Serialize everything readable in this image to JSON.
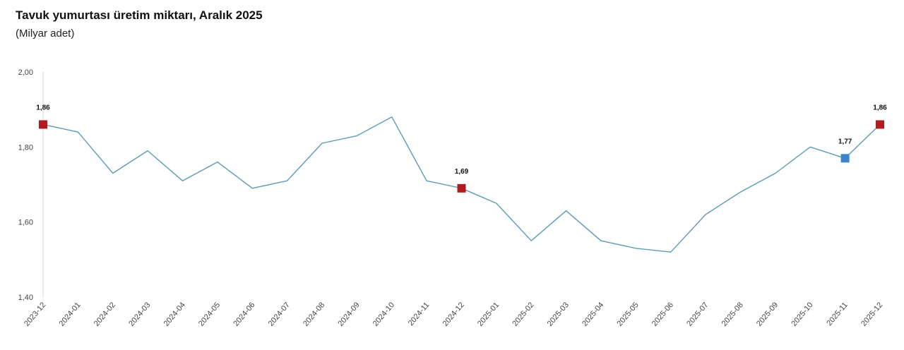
{
  "title": "Tavuk yumurtası üretim miktarı, Aralık 2025",
  "subtitle": "(Milyar adet)",
  "chart_data": {
    "type": "line",
    "title": "Tavuk yumurtası üretim miktarı, Aralık 2025",
    "subtitle": "(Milyar adet)",
    "xlabel": "",
    "ylabel": "",
    "ylim": [
      1.4,
      2.0
    ],
    "yticks": [
      1.4,
      1.6,
      1.8,
      2.0
    ],
    "ytick_labels": [
      "1,40",
      "1,60",
      "1,80",
      "2,00"
    ],
    "grid": false,
    "categories": [
      "2023-12",
      "2024-01",
      "2024-02",
      "2024-03",
      "2024-04",
      "2024-05",
      "2024-06",
      "2024-07",
      "2024-08",
      "2024-09",
      "2024-10",
      "2024-11",
      "2024-12",
      "2025-01",
      "2025-02",
      "2025-03",
      "2025-04",
      "2025-05",
      "2025-06",
      "2025-07",
      "2025-08",
      "2025-09",
      "2025-10",
      "2025-11",
      "2025-12"
    ],
    "series": [
      {
        "values": [
          1.86,
          1.84,
          1.73,
          1.79,
          1.71,
          1.76,
          1.69,
          1.71,
          1.81,
          1.83,
          1.88,
          1.71,
          1.69,
          1.65,
          1.55,
          1.63,
          1.55,
          1.53,
          1.52,
          1.62,
          1.68,
          1.73,
          1.8,
          1.77,
          1.86
        ],
        "color": "#5b9bb8"
      }
    ],
    "highlights": [
      {
        "category": "2023-12",
        "value": 1.86,
        "label": "1,86",
        "color": "#b01c22"
      },
      {
        "category": "2024-12",
        "value": 1.69,
        "label": "1,69",
        "color": "#b01c22"
      },
      {
        "category": "2025-11",
        "value": 1.77,
        "label": "1,77",
        "color": "#3a86c8"
      },
      {
        "category": "2025-12",
        "value": 1.86,
        "label": "1,86",
        "color": "#b01c22"
      }
    ]
  }
}
